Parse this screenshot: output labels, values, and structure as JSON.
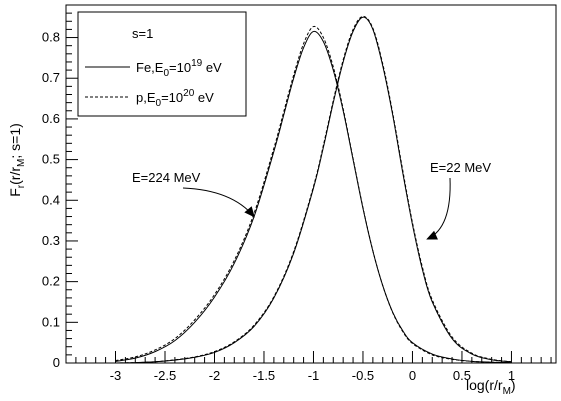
{
  "chart_data": {
    "type": "line",
    "title": "",
    "xlabel_main": "log(r/r",
    "xlabel_sub": "M",
    "xlabel_tail": ")",
    "ylabel_main": "F",
    "ylabel_sub1": "r",
    "ylabel_mid": "(r/r",
    "ylabel_sub2": "M",
    "ylabel_tail": "; s=1)",
    "xlim": [
      -3.5,
      1.45
    ],
    "ylim": [
      0,
      0.88
    ],
    "xticks": [
      "-3",
      "-2.5",
      "-2",
      "-1.5",
      "-1",
      "-0.5",
      "0",
      "0.5",
      "1"
    ],
    "xtick_values": [
      -3,
      -2.5,
      -2,
      -1.5,
      -1,
      -0.5,
      0,
      0.5,
      1
    ],
    "yticks": [
      "0",
      "0.1",
      "0.2",
      "0.3",
      "0.4",
      "0.5",
      "0.6",
      "0.7",
      "0.8"
    ],
    "ytick_values": [
      0,
      0.1,
      0.2,
      0.3,
      0.4,
      0.5,
      0.6,
      0.7,
      0.8
    ],
    "grid": false,
    "legend": {
      "placement": "top-left",
      "header": "s=1",
      "entries": [
        {
          "style": "solid",
          "prefix": "Fe,E",
          "sub": "0",
          "mid": "=10",
          "sup": "19",
          "suffix": " eV"
        },
        {
          "style": "dashed",
          "prefix": "p,E",
          "sub": "0",
          "mid": "=10",
          "sup": "20",
          "suffix": " eV"
        }
      ]
    },
    "annotations": [
      {
        "text": "E=224 MeV",
        "target_x": -1.58,
        "target_y": 0.35
      },
      {
        "text": "E=22 MeV",
        "target_x": 0.12,
        "target_y": 0.3
      }
    ],
    "series": [
      {
        "group": "E=224 MeV",
        "style": "solid",
        "x": [
          -3.0,
          -2.8,
          -2.6,
          -2.4,
          -2.2,
          -2.0,
          -1.8,
          -1.6,
          -1.4,
          -1.3,
          -1.2,
          -1.1,
          -1.0,
          -0.9,
          -0.8,
          -0.7,
          -0.6,
          -0.5,
          -0.4,
          -0.3,
          -0.2,
          -0.1,
          0.0,
          0.2,
          0.4,
          0.6,
          0.8,
          1.0
        ],
        "y": [
          0.004,
          0.012,
          0.028,
          0.055,
          0.1,
          0.162,
          0.245,
          0.36,
          0.52,
          0.61,
          0.7,
          0.775,
          0.815,
          0.79,
          0.72,
          0.62,
          0.5,
          0.38,
          0.275,
          0.19,
          0.125,
          0.08,
          0.05,
          0.022,
          0.01,
          0.004,
          0.002,
          0.001
        ]
      },
      {
        "group": "E=224 MeV",
        "style": "dashed",
        "x": [
          -3.0,
          -2.8,
          -2.6,
          -2.4,
          -2.2,
          -2.0,
          -1.8,
          -1.6,
          -1.4,
          -1.3,
          -1.2,
          -1.1,
          -1.0,
          -0.9,
          -0.8,
          -0.7,
          -0.6,
          -0.5,
          -0.4,
          -0.3,
          -0.2,
          -0.1,
          0.0,
          0.2,
          0.4,
          0.6,
          0.8,
          1.0
        ],
        "y": [
          0.006,
          0.015,
          0.032,
          0.06,
          0.106,
          0.168,
          0.252,
          0.368,
          0.528,
          0.618,
          0.708,
          0.785,
          0.827,
          0.8,
          0.728,
          0.625,
          0.503,
          0.382,
          0.276,
          0.19,
          0.124,
          0.078,
          0.048,
          0.02,
          0.009,
          0.004,
          0.002,
          0.001
        ]
      },
      {
        "group": "E=22 MeV",
        "style": "solid",
        "x": [
          -3.0,
          -2.8,
          -2.6,
          -2.4,
          -2.2,
          -2.0,
          -1.8,
          -1.6,
          -1.4,
          -1.2,
          -1.0,
          -0.9,
          -0.8,
          -0.7,
          -0.6,
          -0.5,
          -0.4,
          -0.3,
          -0.2,
          -0.1,
          0.0,
          0.1,
          0.2,
          0.4,
          0.6,
          0.8,
          1.0
        ],
        "y": [
          0.0,
          0.001,
          0.003,
          0.007,
          0.014,
          0.026,
          0.05,
          0.09,
          0.16,
          0.27,
          0.43,
          0.53,
          0.64,
          0.74,
          0.815,
          0.85,
          0.82,
          0.73,
          0.61,
          0.47,
          0.34,
          0.23,
          0.15,
          0.06,
          0.022,
          0.008,
          0.003
        ]
      },
      {
        "group": "E=22 MeV",
        "style": "dashed",
        "x": [
          -3.0,
          -2.8,
          -2.6,
          -2.4,
          -2.2,
          -2.0,
          -1.8,
          -1.6,
          -1.4,
          -1.2,
          -1.0,
          -0.9,
          -0.8,
          -0.7,
          -0.6,
          -0.5,
          -0.4,
          -0.3,
          -0.2,
          -0.1,
          0.0,
          0.1,
          0.2,
          0.4,
          0.6,
          0.8,
          1.0
        ],
        "y": [
          0.0,
          0.001,
          0.003,
          0.008,
          0.015,
          0.028,
          0.052,
          0.093,
          0.163,
          0.274,
          0.434,
          0.535,
          0.645,
          0.745,
          0.82,
          0.852,
          0.823,
          0.735,
          0.615,
          0.476,
          0.345,
          0.236,
          0.155,
          0.064,
          0.024,
          0.009,
          0.003
        ]
      }
    ]
  }
}
